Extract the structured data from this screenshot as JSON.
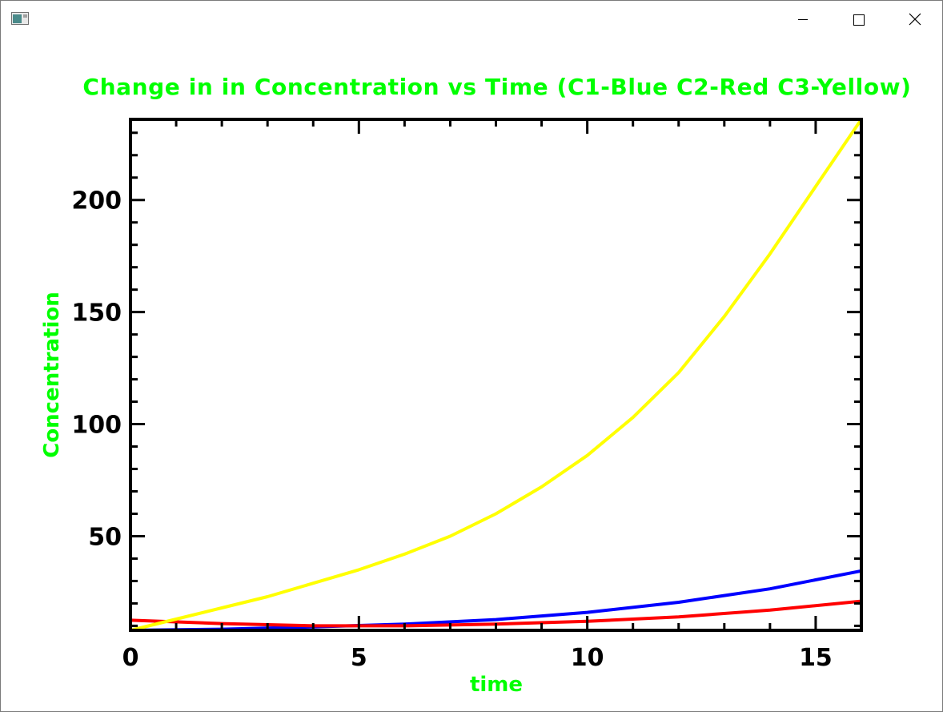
{
  "window": {
    "icon": "app-icon",
    "controls": [
      "minimize-icon",
      "maximize-icon",
      "close-icon"
    ]
  },
  "chart_data": {
    "type": "line",
    "title": "Change in in Concentration vs Time (C1-Blue C2-Red C3-Yellow)",
    "xlabel": "time",
    "ylabel": "Concentration",
    "xlim": [
      0,
      16
    ],
    "ylim": [
      8,
      236
    ],
    "xticks": [
      0,
      5,
      10,
      15
    ],
    "yticks": [
      50,
      100,
      150,
      200
    ],
    "grid": false,
    "text_color": "#00ff00",
    "axis_color": "#000000",
    "series": [
      {
        "color": "#0000ff",
        "x": [
          0,
          2,
          4,
          6,
          8,
          10,
          12,
          14,
          16
        ],
        "y": [
          8,
          8.5,
          9.5,
          10.8,
          12.8,
          16,
          20.5,
          26.5,
          34.5
        ]
      },
      {
        "color": "#ff0000",
        "x": [
          0,
          2,
          4,
          6,
          8,
          10,
          12,
          14,
          16
        ],
        "y": [
          12.5,
          11,
          10,
          10,
          10.8,
          12,
          14,
          17,
          21
        ]
      },
      {
        "color": "#ffff00",
        "x": [
          0,
          1,
          2,
          3,
          4,
          5,
          6,
          7,
          8,
          9,
          10,
          11,
          12,
          13,
          14,
          15,
          16
        ],
        "y": [
          8,
          13,
          18,
          23,
          29,
          35,
          42,
          50,
          60,
          72,
          86,
          103,
          123,
          148,
          176,
          206,
          236
        ]
      }
    ]
  }
}
